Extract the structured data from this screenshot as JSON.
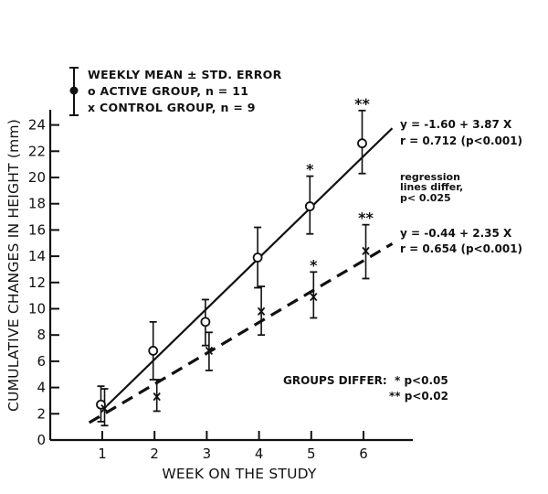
{
  "chart_data": {
    "type": "line",
    "title": "",
    "xlabel": "WEEK ON THE STUDY",
    "ylabel": "CUMULATIVE CHANGES IN HEIGHT (mm)",
    "xlim": [
      0,
      6.9
    ],
    "ylim": [
      0,
      25
    ],
    "x_ticks": [
      1,
      2,
      3,
      4,
      5,
      6
    ],
    "y_ticks": [
      0,
      2,
      4,
      6,
      8,
      10,
      12,
      14,
      16,
      18,
      20,
      22,
      24
    ],
    "grid": false,
    "x": [
      1,
      2,
      3,
      4,
      5,
      6
    ],
    "series": [
      {
        "name": "ACTIVE GROUP, n = 11",
        "marker": "o",
        "values": [
          2.7,
          6.8,
          9.0,
          13.9,
          17.8,
          22.6
        ],
        "err_low": [
          1.4,
          4.6,
          7.2,
          11.6,
          15.7,
          20.3
        ],
        "err_high": [
          4.1,
          9.0,
          10.7,
          16.2,
          20.1,
          25.1
        ],
        "regression": {
          "equation": "y = -1.60 + 3.87 X",
          "r": "r = 0.712 (p<0.001)",
          "intercept": -1.6,
          "slope": 3.87,
          "style": "solid",
          "x_range": [
            1.1,
            6.55
          ]
        }
      },
      {
        "name": "CONTROL GROUP, n = 9",
        "marker": "x",
        "values": [
          2.4,
          3.3,
          6.8,
          9.8,
          10.9,
          14.4
        ],
        "err_low": [
          1.1,
          2.2,
          5.3,
          8.0,
          9.3,
          12.3
        ],
        "err_high": [
          3.9,
          4.6,
          8.2,
          11.7,
          12.8,
          16.4
        ],
        "regression": {
          "equation": "y = -0.44 + 2.35 X",
          "r": "r = 0.654 (p<0.001)",
          "intercept": -0.44,
          "slope": 2.35,
          "style": "dashed",
          "x_range": [
            0.75,
            6.55
          ]
        }
      }
    ],
    "significance": [
      {
        "week": 5,
        "group": "active",
        "mark": "*"
      },
      {
        "week": 6,
        "group": "active",
        "mark": "**"
      },
      {
        "week": 5,
        "group": "control",
        "mark": "*"
      },
      {
        "week": 6,
        "group": "control",
        "mark": "**"
      }
    ],
    "legend": {
      "position": "top-left",
      "lines": [
        "WEEKLY MEAN ± STD. ERROR",
        "o ACTIVE GROUP, n = 11",
        "x CONTROL GROUP, n = 9"
      ]
    },
    "annotations": {
      "active_eq": "y = -1.60 + 3.87 X",
      "active_r": "r = 0.712  (p<0.001)",
      "regression_note": [
        "regression",
        "lines differ,",
        "p< 0.025"
      ],
      "control_eq": "y = -0.44 + 2.35 X",
      "control_r": "r =  0.654 (p<0.001)",
      "groups_differ_label": "GROUPS DIFFER:",
      "sig1": "* p<0.05",
      "sig2": "** p<0.02"
    }
  }
}
